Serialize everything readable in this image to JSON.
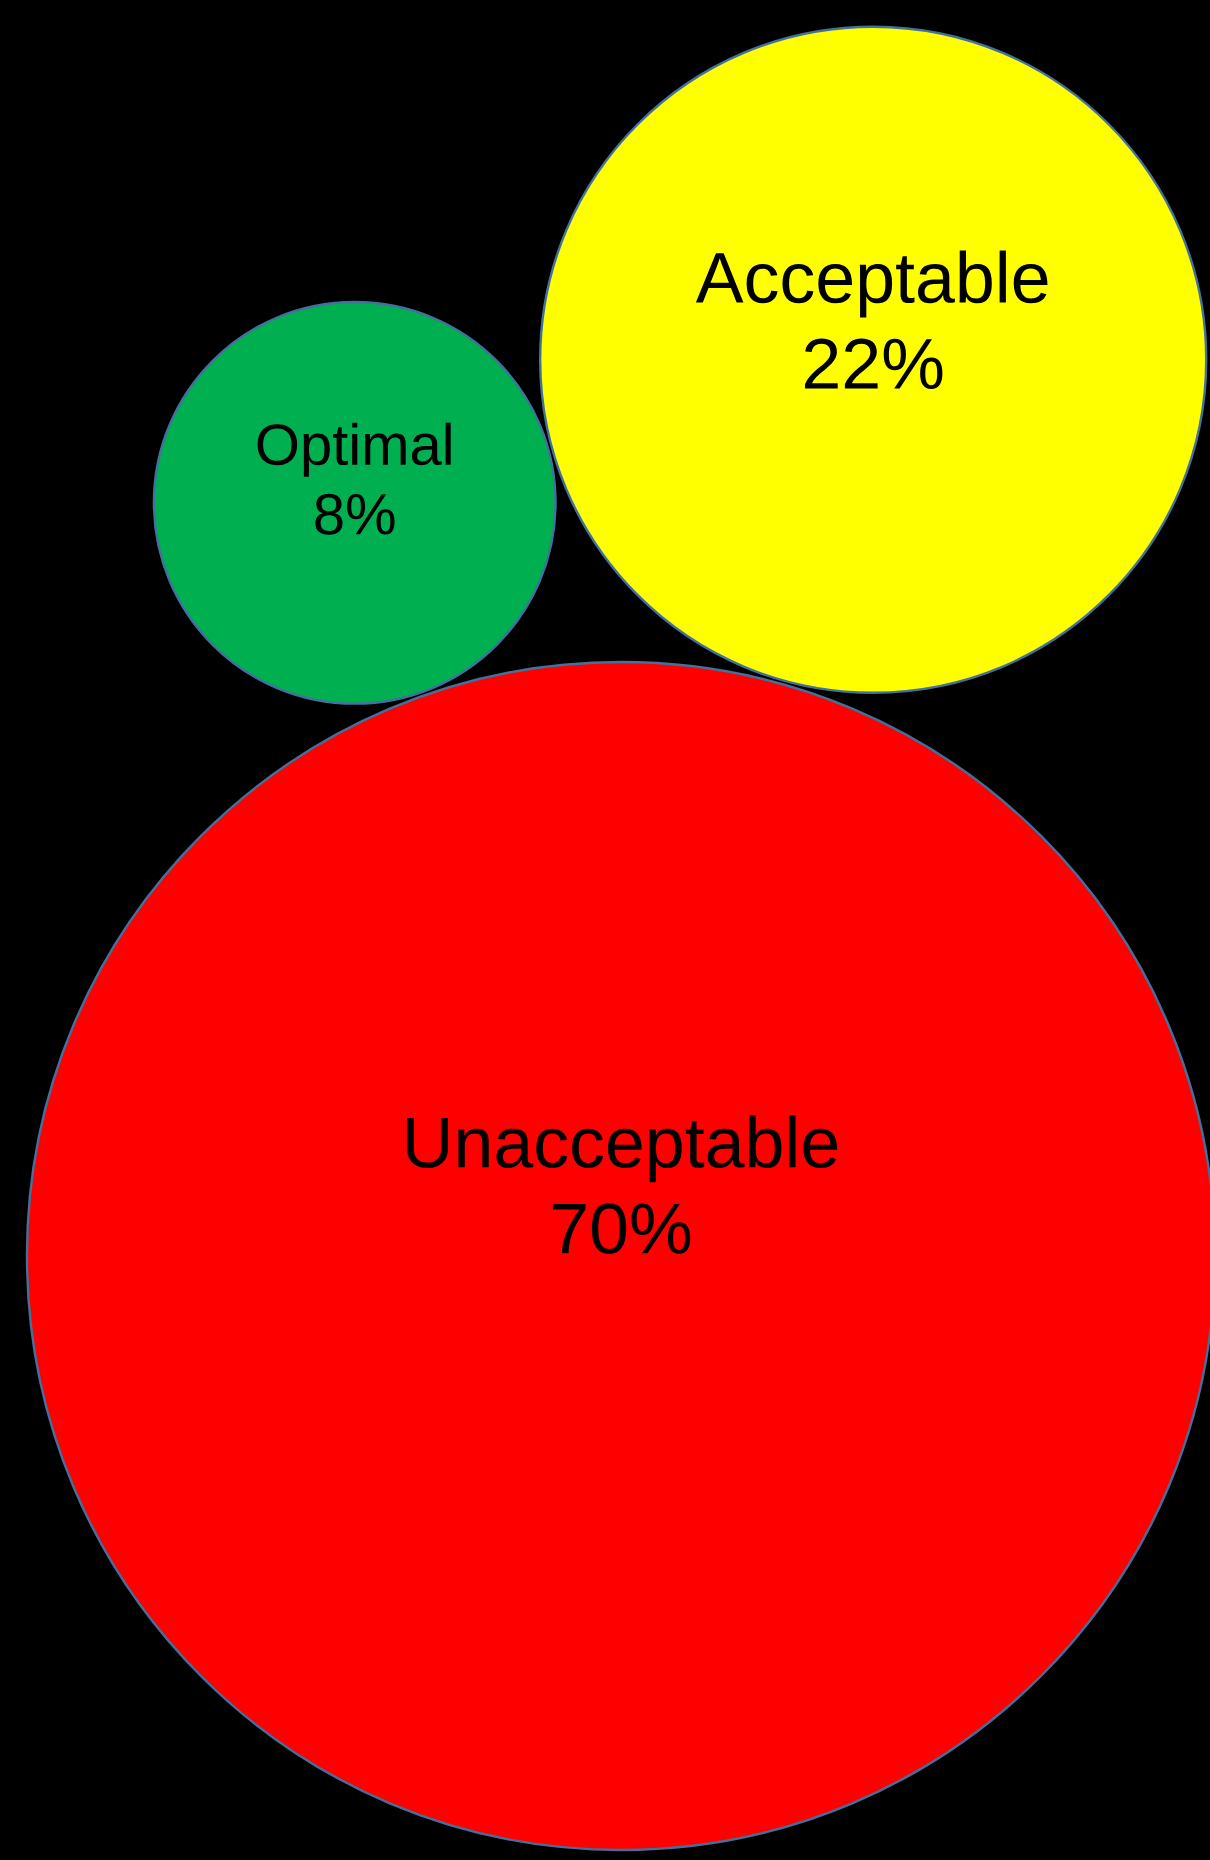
{
  "chart_data": {
    "type": "other",
    "categories": [
      "Optimal",
      "Acceptable",
      "Unacceptable"
    ],
    "values": [
      8,
      22,
      70
    ],
    "value_labels": [
      "8%",
      "22%",
      "70%"
    ],
    "colors": [
      "#00b050",
      "#ffff00",
      "#ff0000"
    ]
  }
}
